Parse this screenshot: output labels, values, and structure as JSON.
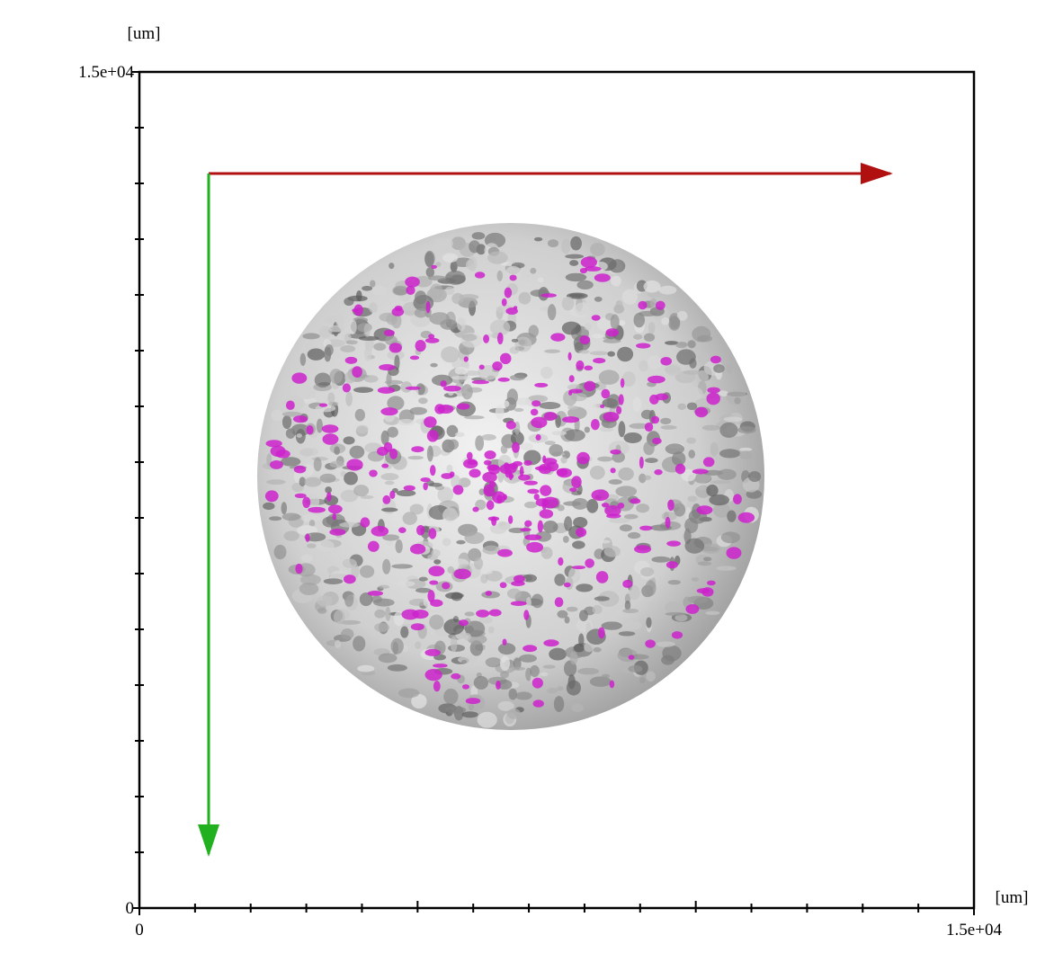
{
  "viewer": {
    "x_axis": {
      "unit": "[um]",
      "range": [
        0,
        15000
      ],
      "ticks": [
        0,
        {
          "value": 15000,
          "label": "1.5e+04"
        }
      ]
    },
    "y_axis": {
      "unit": "[um]",
      "range": [
        0,
        15000
      ],
      "ticks": [
        0,
        {
          "value": 15000,
          "label": "1.5e+04"
        }
      ]
    }
  }
}
